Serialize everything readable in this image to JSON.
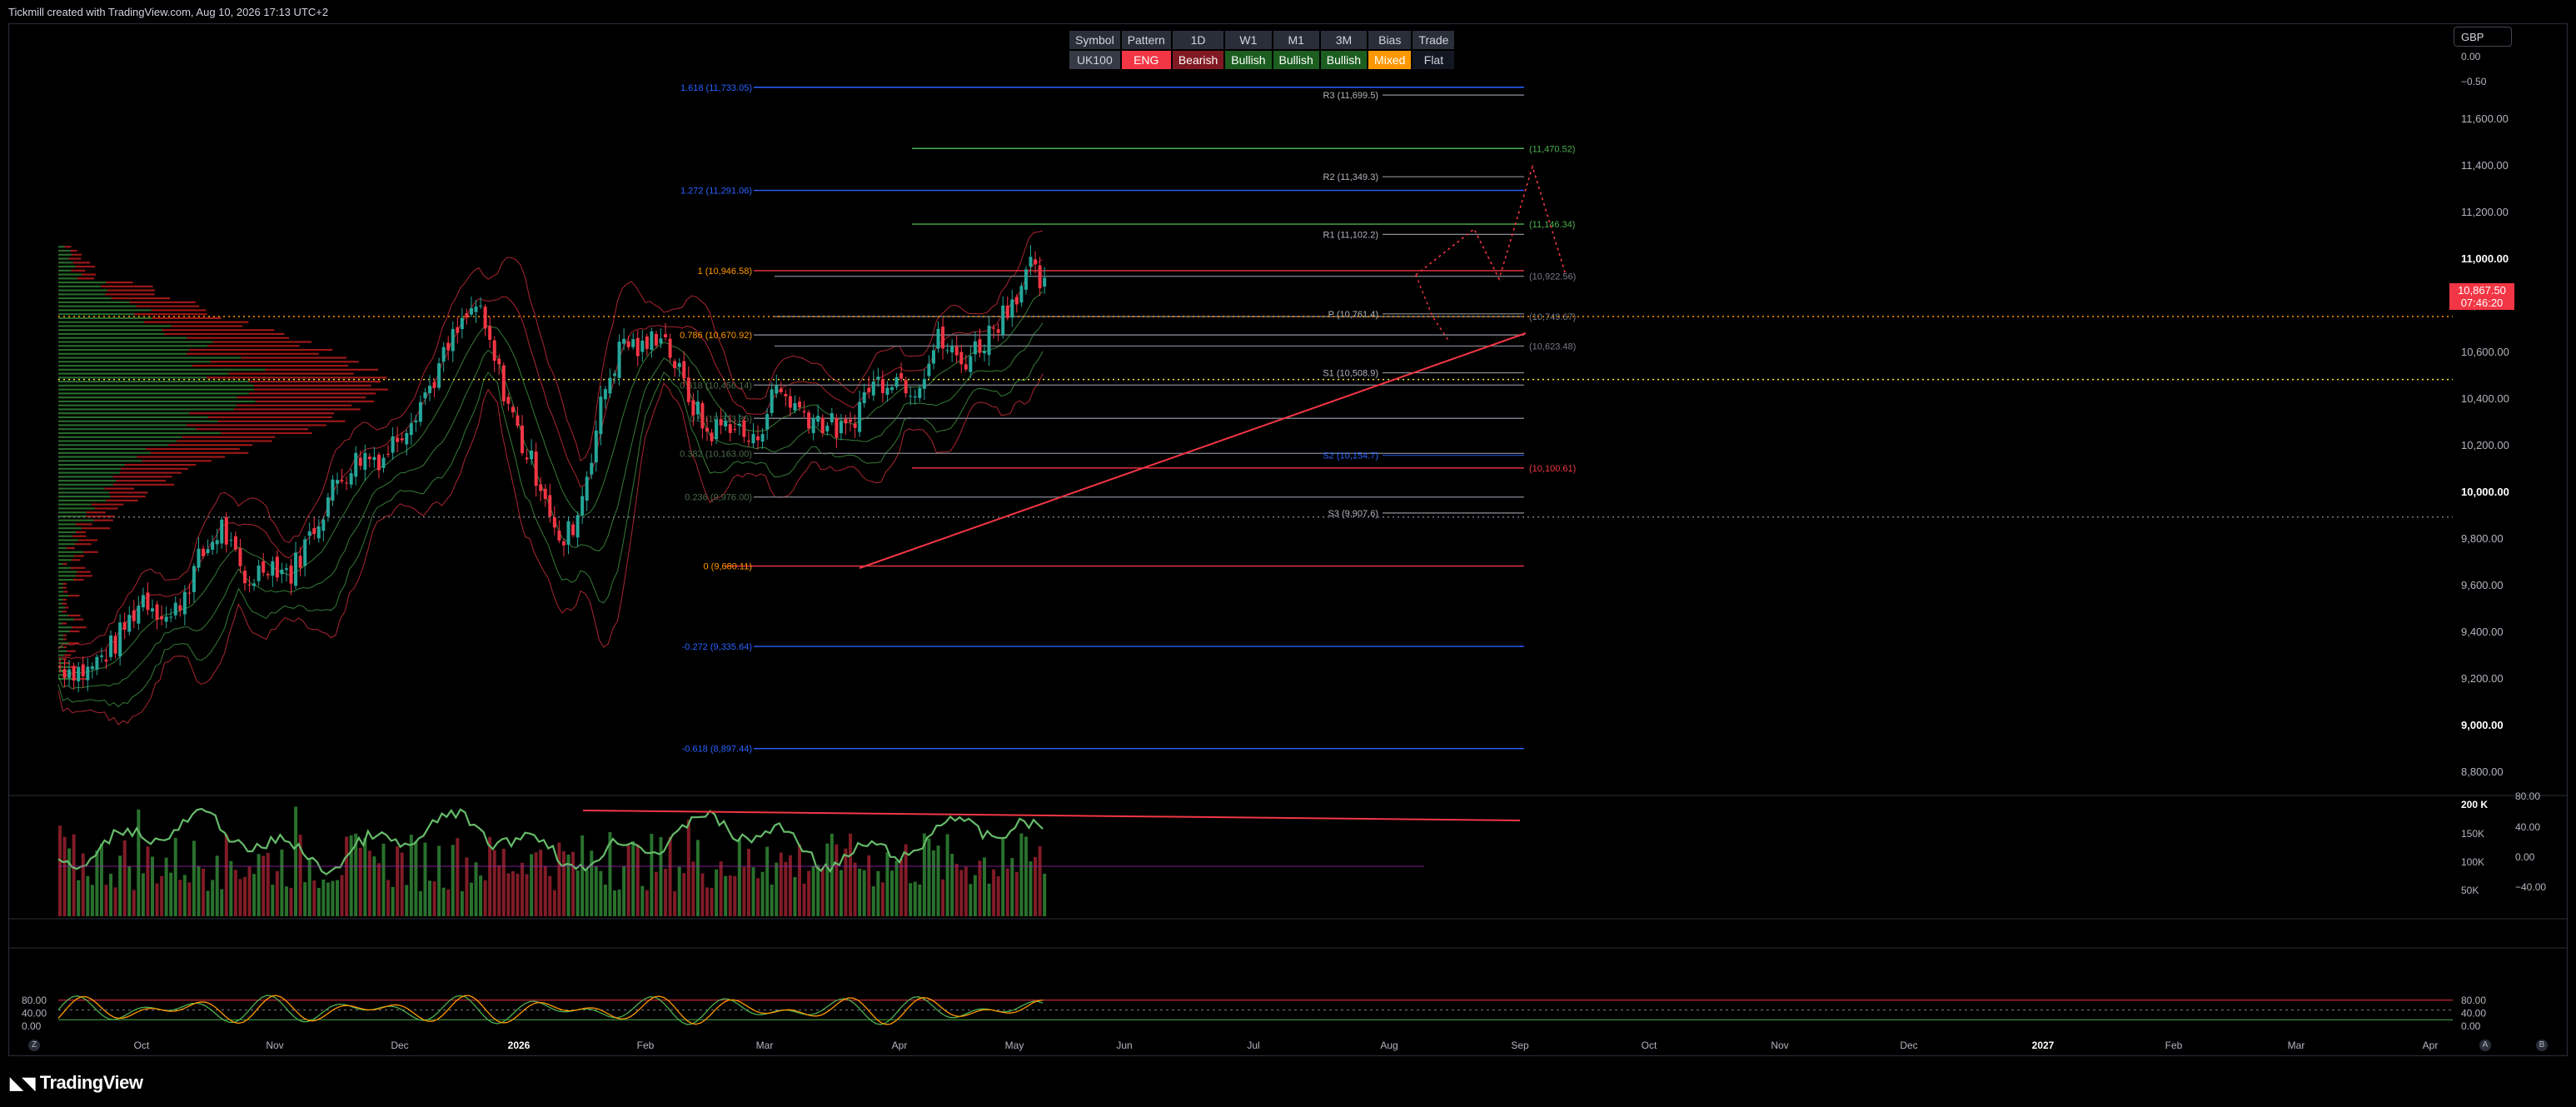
{
  "header": {
    "credit": "Tickmill created with TradingView.com, Aug 10, 2026 17:13 UTC+2"
  },
  "info_table": {
    "headers": [
      "Symbol",
      "Pattern",
      "1D",
      "W1",
      "M1",
      "3M",
      "Bias",
      "Trade"
    ],
    "values": [
      {
        "text": "UK100",
        "bg": "#363a45",
        "fg": "#d1d4dc"
      },
      {
        "text": "ENG",
        "bg": "#f23645",
        "fg": "#ffffff"
      },
      {
        "text": "Bearish",
        "bg": "#801922",
        "fg": "#ffffff"
      },
      {
        "text": "Bullish",
        "bg": "#1b5e20",
        "fg": "#ffffff"
      },
      {
        "text": "Bullish",
        "bg": "#1b5e20",
        "fg": "#ffffff"
      },
      {
        "text": "Bullish",
        "bg": "#1b5e20",
        "fg": "#ffffff"
      },
      {
        "text": "Mixed",
        "bg": "#ff9800",
        "fg": "#ffffff"
      },
      {
        "text": "Flat",
        "bg": "#131722",
        "fg": "#d1d4dc"
      }
    ]
  },
  "currency": "GBP",
  "price_badge": {
    "price": "10,867.50",
    "countdown": "07:46:20"
  },
  "footer": {
    "logo": "TradingView",
    "left_btn": "Z",
    "right_btn_a": "A",
    "right_btn_b": "B"
  },
  "colors": {
    "up": "#26a69a",
    "down": "#f23645",
    "fib": "#2962ff",
    "green_line": "#4caf50",
    "red_line": "#f23645",
    "orange": "#ff9800"
  },
  "chart_data": [
    {
      "type": "candlestick",
      "instrument": "UK100",
      "ylim": [
        8700,
        11900
      ],
      "price_ticks": [
        "11,600.00",
        "11,400.00",
        "11,200.00",
        "11,000.00",
        "10,800.00",
        "10,600.00",
        "10,400.00",
        "10,200.00",
        "10,000.00",
        "9,800.00",
        "9,600.00",
        "9,400.00",
        "9,200.00",
        "9,000.00",
        "8,800.00"
      ],
      "bold_ticks": [
        "11,000.00",
        "10,000.00",
        "9,000.00"
      ],
      "top_ticks": [
        "0.00",
        "−0.50"
      ],
      "x_ticks": [
        "Oct",
        "Nov",
        "Dec",
        "2026",
        "Feb",
        "Mar",
        "Apr",
        "May",
        "Jun",
        "Jul",
        "Aug",
        "Sep",
        "Oct",
        "Nov",
        "Dec",
        "2027",
        "Feb",
        "Mar",
        "Apr"
      ],
      "bold_x_ticks": [
        "2026",
        "2027"
      ],
      "close_path": [
        [
          0,
          9250
        ],
        [
          6,
          9230
        ],
        [
          12,
          9350
        ],
        [
          18,
          9550
        ],
        [
          24,
          9450
        ],
        [
          30,
          9700
        ],
        [
          35,
          9850
        ],
        [
          40,
          9600
        ],
        [
          45,
          9700
        ],
        [
          50,
          9650
        ],
        [
          55,
          9850
        ],
        [
          60,
          10050
        ],
        [
          65,
          10150
        ],
        [
          70,
          10150
        ],
        [
          75,
          10300
        ],
        [
          80,
          10450
        ],
        [
          85,
          10650
        ],
        [
          90,
          10800
        ],
        [
          95,
          10500
        ],
        [
          100,
          10200
        ],
        [
          105,
          10000
        ],
        [
          108,
          9750
        ],
        [
          112,
          9900
        ],
        [
          118,
          10450
        ],
        [
          122,
          10650
        ],
        [
          126,
          10600
        ],
        [
          130,
          10700
        ],
        [
          135,
          10450
        ],
        [
          140,
          10250
        ],
        [
          145,
          10300
        ],
        [
          150,
          10200
        ],
        [
          155,
          10450
        ],
        [
          160,
          10350
        ],
        [
          165,
          10300
        ],
        [
          170,
          10250
        ],
        [
          175,
          10450
        ],
        [
          180,
          10500
        ],
        [
          185,
          10450
        ],
        [
          190,
          10650
        ],
        [
          195,
          10550
        ],
        [
          200,
          10650
        ],
        [
          205,
          10800
        ],
        [
          210,
          10950
        ],
        [
          213,
          10867
        ]
      ],
      "fib_levels": [
        {
          "label": "1.618 (11,733.05)",
          "value": 11733
        },
        {
          "label": "1.272 (11,291.06)",
          "value": 11291
        },
        {
          "label": "1 (10,946.58)",
          "value": 10946.6
        },
        {
          "label": "0.786 (10,670.92)",
          "value": 10671
        },
        {
          "label": "0.618 (10,456.14)",
          "value": 10456
        },
        {
          "label": "0.5 (10,313.35)",
          "value": 10313.35
        },
        {
          "label": "0.382 (10,163.00)",
          "value": 10163
        },
        {
          "label": "0.236 (9,976.00)",
          "value": 9976
        },
        {
          "label": "0 (9,680.11)",
          "value": 9680.11
        },
        {
          "label": "-0.272 (9,335.64)",
          "value": 9335.64
        },
        {
          "label": "-0.618 (8,897.44)",
          "value": 8897.44
        }
      ],
      "pivots": [
        {
          "label": "R3 (11,699.5)",
          "value": 11699.5
        },
        {
          "label": "R2 (11,349.3)",
          "value": 11349.3
        },
        {
          "label": "R1 (11,102.2)",
          "value": 11102.2
        },
        {
          "label": "P (10,761.4)",
          "value": 10761.4
        },
        {
          "label": "S1 (10,508.9)",
          "value": 10508.9
        },
        {
          "label": "S2 (10,154.7)",
          "value": 10154.7
        },
        {
          "label": "S3 (9,907.6)",
          "value": 9907.6
        }
      ],
      "targets": [
        {
          "label": "(11,470.52)",
          "value": 11470.52,
          "color": "#4caf50"
        },
        {
          "label": "(11,146.34)",
          "value": 11146.34,
          "color": "#4caf50"
        },
        {
          "label": "(10,922.56)",
          "value": 10922.56,
          "color": "#787b86"
        },
        {
          "label": "(10,749.67)",
          "value": 10749.67,
          "color": "#787b86"
        },
        {
          "label": "(10,623.48)",
          "value": 10623.48,
          "color": "#787b86"
        },
        {
          "label": "(10,100.61)",
          "value": 10100.61,
          "color": "#f23645"
        }
      ],
      "dotted_levels": [
        {
          "value": 10750,
          "color": "#ff9800"
        },
        {
          "value": 10480,
          "color": "#ffeb3b"
        },
        {
          "value": 9890,
          "color": "#787b86"
        }
      ]
    },
    {
      "type": "bar",
      "name": "volume",
      "ticks": [
        "200 K",
        "150K",
        "100K",
        "50K"
      ],
      "right_ticks": [
        "80.00",
        "40.00",
        "0.00",
        "−40.00"
      ]
    },
    {
      "type": "line",
      "name": "stochastic",
      "ticks": [
        "80.00",
        "40.00",
        "0.00"
      ],
      "ylim": [
        0,
        100
      ]
    }
  ]
}
